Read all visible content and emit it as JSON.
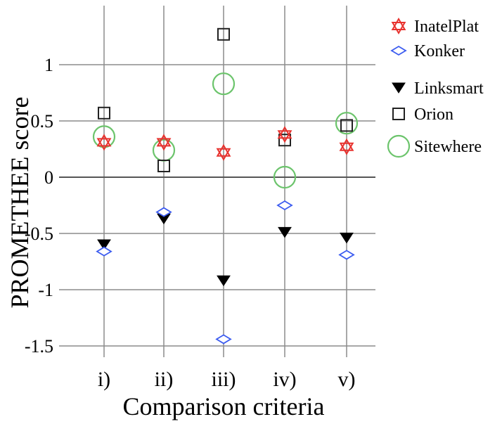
{
  "chart_data": {
    "type": "scatter",
    "xlabel": "Comparison criteria",
    "ylabel": "PROMETHEE score",
    "categories": [
      "i)",
      "ii)",
      "iii)",
      "iv)",
      "v)"
    ],
    "yticks": [
      1,
      0.5,
      0,
      -0.5,
      -1,
      -1.5
    ],
    "ytick_labels": [
      "1",
      "0.5",
      "0",
      "-0.5",
      "-1",
      "-1.5"
    ],
    "ylim": [
      -1.65,
      1.5
    ],
    "grid": "on",
    "legend_position": "top-right",
    "series": [
      {
        "name": "InatelPlat",
        "marker": "hexagram",
        "color": "#e8322e",
        "values": [
          0.31,
          0.31,
          0.22,
          0.38,
          0.27
        ]
      },
      {
        "name": "Konker",
        "marker": "diamond",
        "color": "#3b5bf0",
        "values": [
          -0.66,
          -0.31,
          -1.44,
          -0.25,
          -0.69
        ]
      },
      {
        "name": "Linksmart",
        "marker": "triangle-down",
        "color": "#000000",
        "values": [
          -0.6,
          -0.37,
          -0.92,
          -0.49,
          -0.54
        ]
      },
      {
        "name": "Orion",
        "marker": "square",
        "color": "#222222",
        "values": [
          0.57,
          0.1,
          1.27,
          0.33,
          0.46
        ]
      },
      {
        "name": "Sitewhere",
        "marker": "circle",
        "color": "#6cc46c",
        "values": [
          0.36,
          0.24,
          0.83,
          0.0,
          0.48
        ]
      }
    ]
  }
}
